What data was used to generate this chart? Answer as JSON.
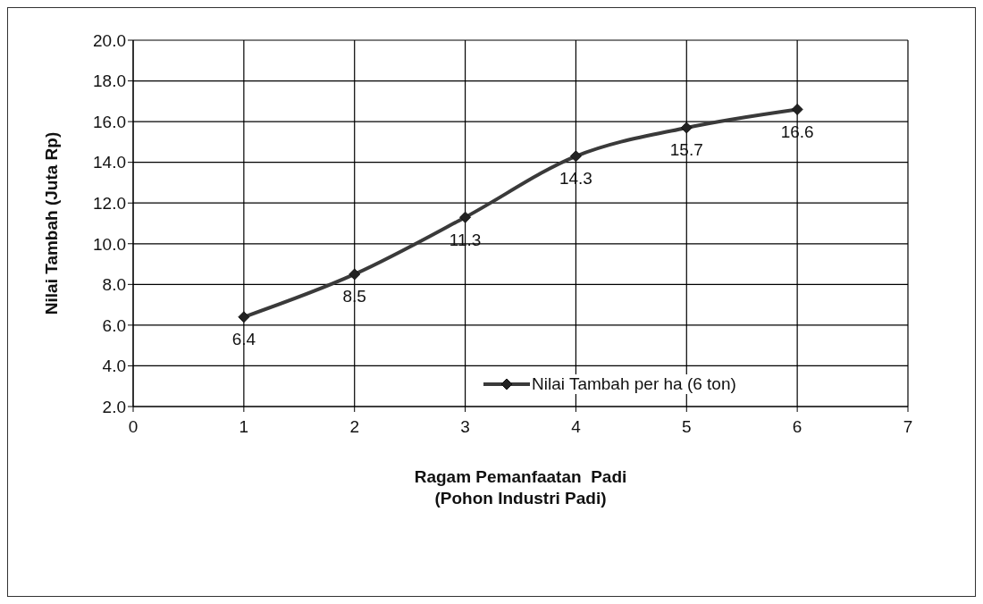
{
  "chart_data": {
    "type": "line",
    "xlabel": "Ragam Pemanfaatan  Padi\n(Pohon Industri Padi)",
    "ylabel": "Nilai Tambah (Juta Rp)",
    "x": [
      1,
      2,
      3,
      4,
      5,
      6
    ],
    "series": [
      {
        "name": "Nilai Tambah per ha (6 ton)",
        "color": "#3a3a3a",
        "values": [
          6.4,
          8.5,
          11.3,
          14.3,
          15.7,
          16.6
        ]
      }
    ],
    "xlim": [
      0,
      7
    ],
    "xticks": [
      0,
      1,
      2,
      3,
      4,
      5,
      6,
      7
    ],
    "ylim": [
      2,
      20
    ],
    "yticks": [
      {
        "value": 2,
        "label": "2.0"
      },
      {
        "value": 4,
        "label": "4.0"
      },
      {
        "value": 6,
        "label": "6.0"
      },
      {
        "value": 8,
        "label": "8.0"
      },
      {
        "value": 10,
        "label": "10.0"
      },
      {
        "value": 12,
        "label": "12.0"
      },
      {
        "value": 14,
        "label": "14.0"
      },
      {
        "value": 16,
        "label": "16.0"
      },
      {
        "value": 18,
        "label": "18.0"
      },
      {
        "value": 20,
        "label": "20.0"
      }
    ],
    "grid": true,
    "legend": "right",
    "marker": "diamond",
    "line_style": "solid",
    "data_labels": true
  }
}
